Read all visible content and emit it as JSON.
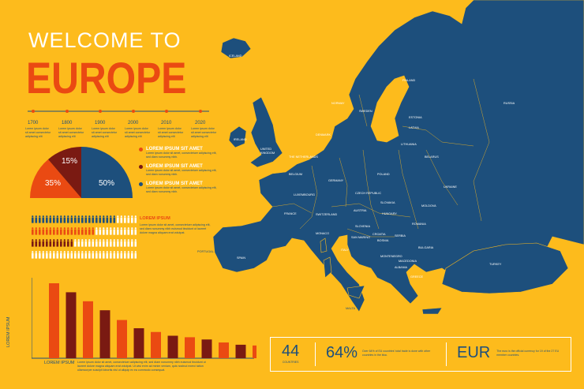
{
  "title_line1": "WELCOME TO",
  "title_line2": "EUROPE",
  "timeline": [
    "1700",
    "1800",
    "1900",
    "2000",
    "2010",
    "2020"
  ],
  "lorem_tiny": "Lorem ipsum dolor sit amet consectetur adipiscing elit",
  "pie": {
    "slices": [
      {
        "label": "15%",
        "value": 15,
        "color": "#7a1a12"
      },
      {
        "label": "35%",
        "value": 35,
        "color": "#ea4a12"
      },
      {
        "label": "50%",
        "value": 50,
        "color": "#1d4f7c"
      }
    ]
  },
  "legend": [
    {
      "title": "LOREM IPSUM SIT AMET",
      "text": "Lorem ipsum dolor sit amet, consectetuer adipiscing elit, sed diam nonummy nibh.",
      "color": "#ea4a12"
    },
    {
      "title": "LOREM IPSUM SIT AMET",
      "text": "Lorem ipsum dolor sit amet, consectetuer adipiscing elit, sed diam nonummy nibh.",
      "color": "#7a1a12"
    },
    {
      "title": "LOREM IPSUM SIT AMET",
      "text": "Lorem ipsum dolor sit amet, consectetuer adipiscing elit, sed diam nonummy nibh.",
      "color": "#1d4f7c"
    }
  ],
  "people_block": {
    "title": "LOREM IPSUM",
    "text": "Lorem ipsum dolor sit amet, consectetuer adipiscing elit, sed diam nonummy nibh euismod tincidunt ut laoreet dolore magna aliquam erat volutpat."
  },
  "chart_data": {
    "type": "bar",
    "values": [
      100,
      88,
      76,
      64,
      51,
      40,
      35,
      30,
      28,
      25,
      21,
      18,
      17
    ],
    "colors": [
      "#ea4a12",
      "#7a1a12",
      "#ea4a12",
      "#7a1a12",
      "#ea4a12",
      "#7a1a12",
      "#ea4a12",
      "#7a1a12",
      "#ea4a12",
      "#7a1a12",
      "#ea4a12",
      "#7a1a12",
      "#ea4a12"
    ],
    "xlabel": "LOREM IPSUM",
    "ylabel": "LOREM IPSUM",
    "note": "Lorem ipsum dolor sit amet, consectetuer adipiscing elit, sed diam nonummy nibh euismod tincidunt ut laoreet dolore magna aliquam erat volutpat. Ut wisi enim ad minim veniam, quis nostrud exerci tation ullamcorper suscipit lobortis nisl ut aliquip ex ea commodo consequat."
  },
  "stats": [
    {
      "big": "44",
      "small": "COUNTRIES"
    },
    {
      "big": "64%",
      "small": "Over 64% of EU countries' total trade is done with other countries in the bloc."
    },
    {
      "big": "EUR",
      "small": "The euro is the official currency for 19 of the 27 EU member countries."
    }
  ],
  "countries": {
    "iceland": "ICELAND",
    "norway": "NORWAY",
    "sweden": "SWEDEN",
    "finland": "FINLAND",
    "russia": "RUSSIA",
    "estonia": "ESTONIA",
    "latvia": "LATVIA",
    "lithuania": "LITHUANIA",
    "denmark": "DENMARK",
    "ireland": "IRELAND",
    "uk": "UNITED KINGDOM",
    "netherlands": "THE NETHERLANDS",
    "belgium": "BELGIUM",
    "luxembourg": "LUXEMBOURG",
    "germany": "GERMANY",
    "poland": "POLAND",
    "belarus": "BELARUS",
    "ukraine": "UKRAINE",
    "czech": "CZECH REPUBLIC",
    "slovakia": "SLOVAKIA",
    "austria": "AUSTRIA",
    "switzerland": "SWITZERLAND",
    "france": "FRANCE",
    "hungary": "HUNGARY",
    "moldova": "MOLDOVA",
    "romania": "ROMANIA",
    "slovenia": "SLOVENIA",
    "croatia": "CROATIA",
    "bosnia": "BOSNIA",
    "serbia": "SERBIA",
    "bulgaria": "BULGARIA",
    "montenegro": "MONTENEGRO",
    "macedonia": "MACEDONIA",
    "albania": "ALBANIA",
    "greece": "GREECE",
    "italy": "ITALY",
    "san_marino": "SAN MARINO",
    "monaco": "MONACO",
    "spain": "SPAIN",
    "portugal": "PORTUGAL",
    "turkey": "TURKEY",
    "malta": "MALTA"
  }
}
